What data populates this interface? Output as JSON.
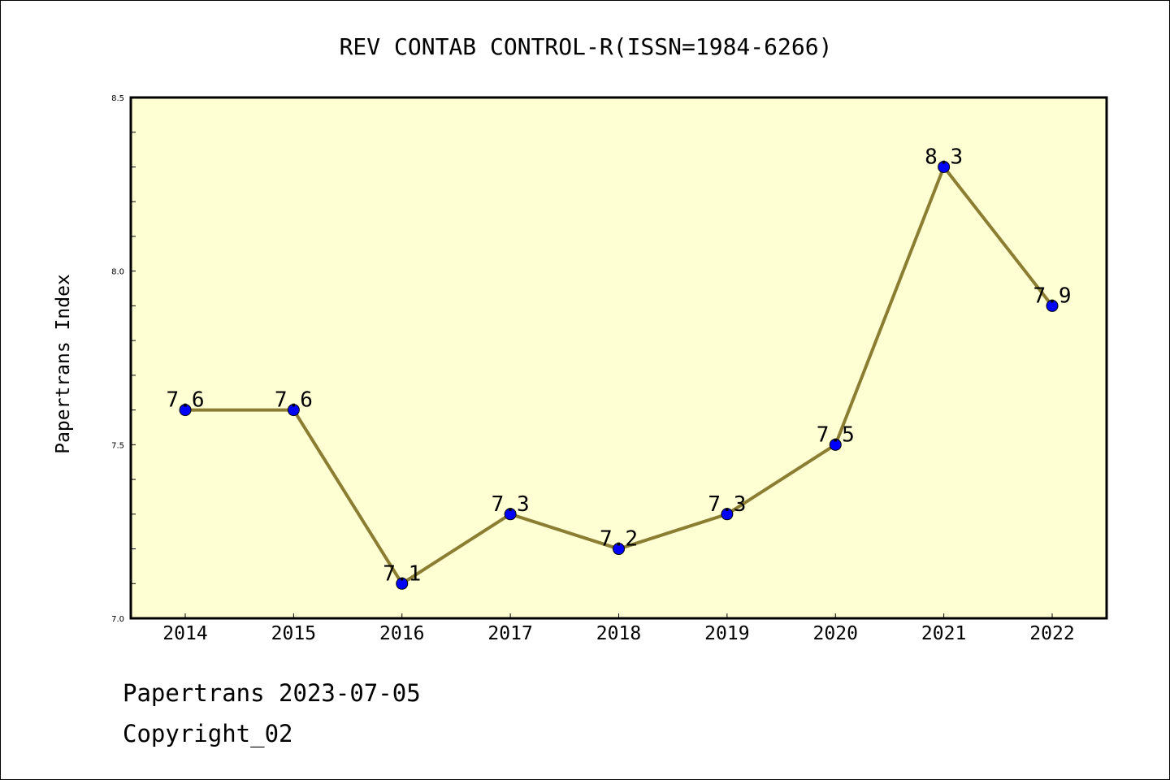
{
  "chart_data": {
    "type": "line",
    "title": "REV CONTAB CONTROL-R(ISSN=1984-6266)",
    "xlabel": "",
    "ylabel": "Papertrans Index",
    "categories": [
      "2014",
      "2015",
      "2016",
      "2017",
      "2018",
      "2019",
      "2020",
      "2021",
      "2022"
    ],
    "series": [
      {
        "name": "Papertrans Index",
        "values": [
          7.6,
          7.6,
          7.1,
          7.3,
          7.2,
          7.3,
          7.5,
          8.3,
          7.9
        ]
      }
    ],
    "data_labels": [
      "7.6",
      "7.6",
      "7.1",
      "7.3",
      "7.2",
      "7.3",
      "7.5",
      "8.3",
      "7.9"
    ],
    "ylim": [
      7.0,
      8.5
    ],
    "yticks": [
      "7.0",
      "7.5",
      "8.0",
      "8.5"
    ],
    "grid": false,
    "colors": {
      "line": "#8B7D32",
      "marker": "#0000FF",
      "plot_bg": "#FFFFD4"
    }
  },
  "footer": {
    "line1": "Papertrans 2023-07-05",
    "line2": "Copyright_02"
  }
}
